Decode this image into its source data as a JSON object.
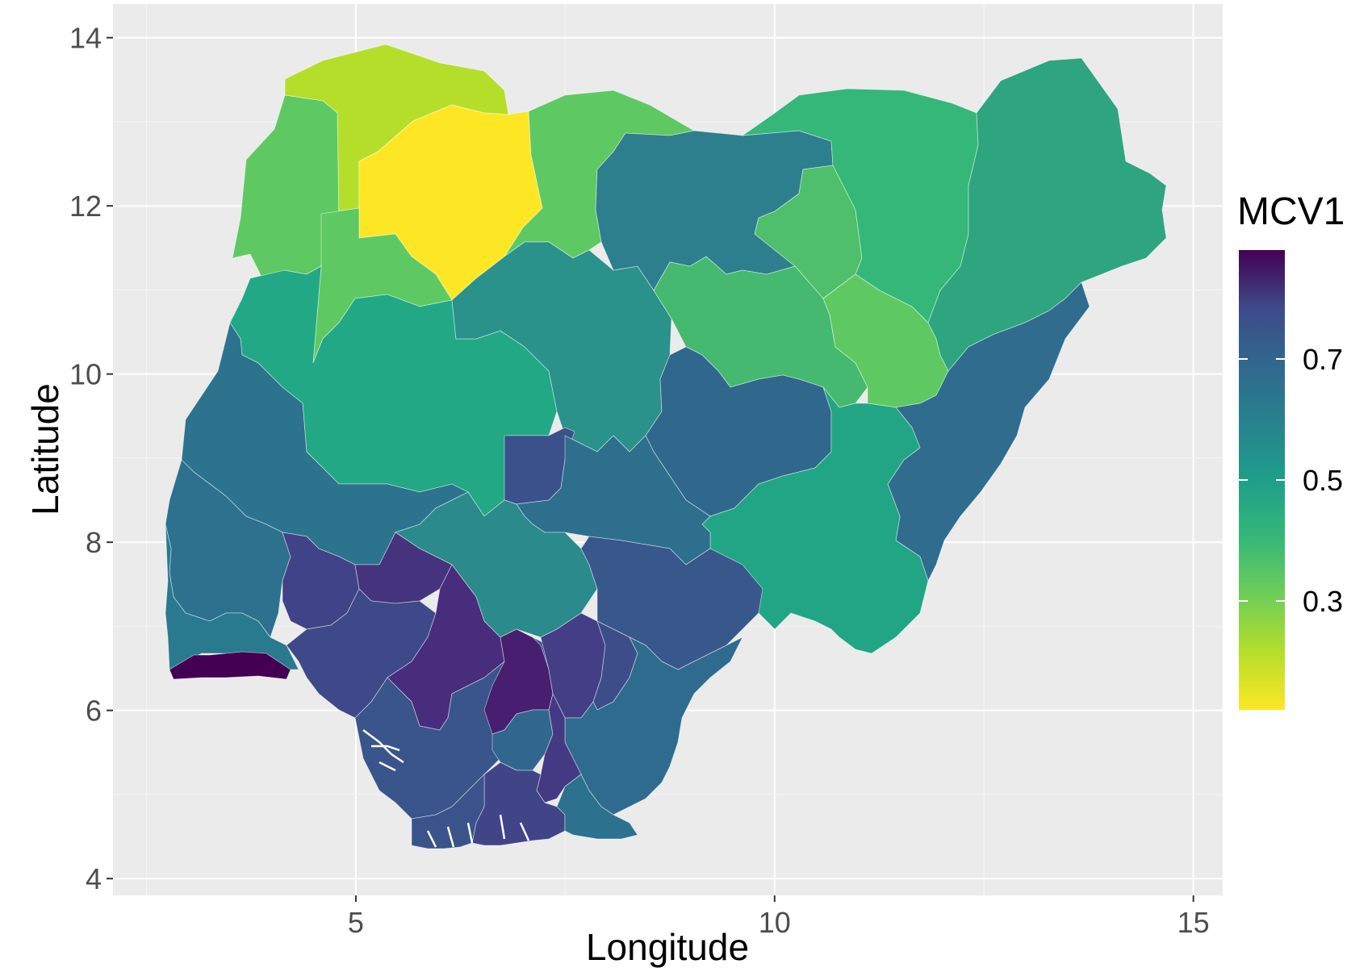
{
  "chart_data": {
    "type": "choropleth",
    "xlabel": "Longitude",
    "ylabel": "Latitude",
    "xlim": [
      2.1,
      15.35
    ],
    "ylim": [
      3.8,
      14.4
    ],
    "x_ticks": [
      5,
      10,
      15
    ],
    "y_ticks": [
      4,
      6,
      8,
      10,
      12,
      14
    ],
    "x_tick_labels": [
      "5",
      "10",
      "15"
    ],
    "y_tick_labels": [
      "4",
      "6",
      "8",
      "10",
      "12",
      "14"
    ],
    "grid": true,
    "legend": {
      "title": "MCV1",
      "placement": "right",
      "colormap": "viridis-reversed",
      "range": [
        0.12,
        0.88
      ],
      "ticks": [
        0.3,
        0.5,
        0.7
      ],
      "tick_labels": [
        "0.3",
        "0.5",
        "0.7"
      ]
    },
    "colors": {
      "panel_background": "#ebebeb",
      "grid_major": "#ffffff",
      "grid_minor": "#f5f5f5"
    }
  }
}
